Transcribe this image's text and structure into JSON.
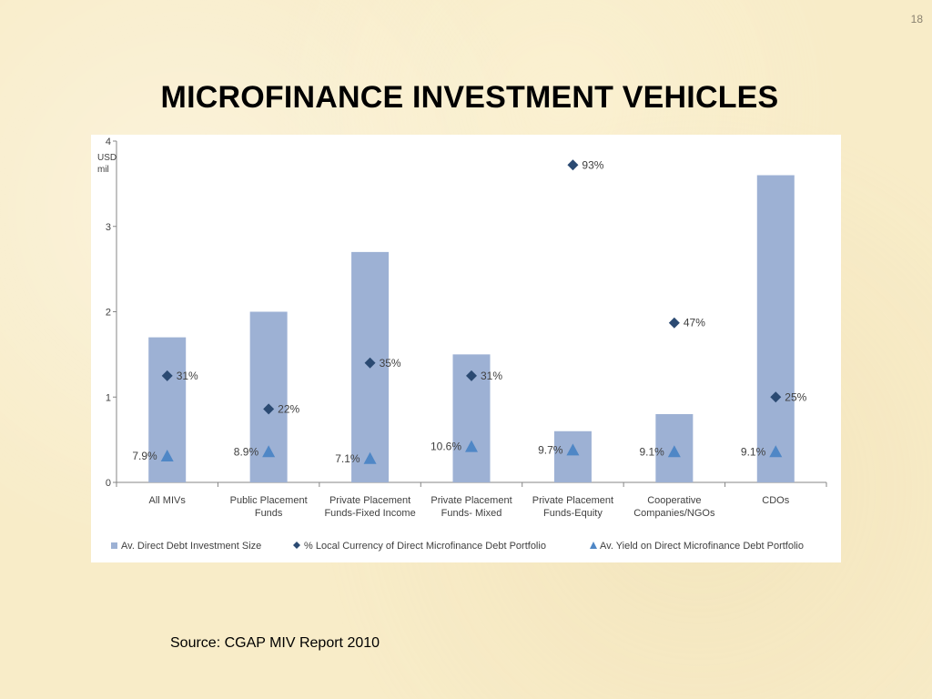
{
  "slide": {
    "number": "18",
    "title": "MICROFINANCE INVESTMENT VEHICLES",
    "source": "Source: CGAP MIV Report 2010"
  },
  "chart_data": {
    "type": "bar",
    "y_unit_label": [
      "USD",
      "mil"
    ],
    "ylim": [
      0,
      4
    ],
    "yticks": [
      0,
      1,
      2,
      3,
      4
    ],
    "grid": false,
    "legend_position": "bottom",
    "categories": [
      [
        "All MIVs"
      ],
      [
        "Public Placement",
        "Funds"
      ],
      [
        "Private Placement",
        "Funds-Fixed Income"
      ],
      [
        "Private Placement",
        "Funds- Mixed"
      ],
      [
        "Private Placement",
        "Funds-Equity"
      ],
      [
        "Cooperative",
        "Companies/NGOs"
      ],
      [
        "CDOs"
      ]
    ],
    "series": [
      {
        "name": "Av. Direct Debt Investment Size",
        "type": "bar",
        "color": "#9db1d4",
        "values": [
          1.7,
          2.0,
          2.7,
          1.5,
          0.6,
          0.8,
          3.6
        ]
      },
      {
        "name": "% Local Currency of Direct Microfinance Debt Portfolio",
        "type": "diamond",
        "color": "#2b4a72",
        "values": [
          1.25,
          0.86,
          1.4,
          1.25,
          3.72,
          1.87,
          1.0
        ],
        "labels": [
          "31%",
          "22%",
          "35%",
          "31%",
          "93%",
          "47%",
          "25%"
        ]
      },
      {
        "name": "Av. Yield on Direct Microfinance Debt Portfolio",
        "type": "triangle",
        "color": "#4f87c6",
        "values": [
          0.31,
          0.36,
          0.28,
          0.42,
          0.38,
          0.36,
          0.36
        ],
        "labels": [
          "7.9%",
          "8.9%",
          "7.1%",
          "10.6%",
          "9.7%",
          "9.1%",
          "9.1%"
        ]
      }
    ]
  }
}
